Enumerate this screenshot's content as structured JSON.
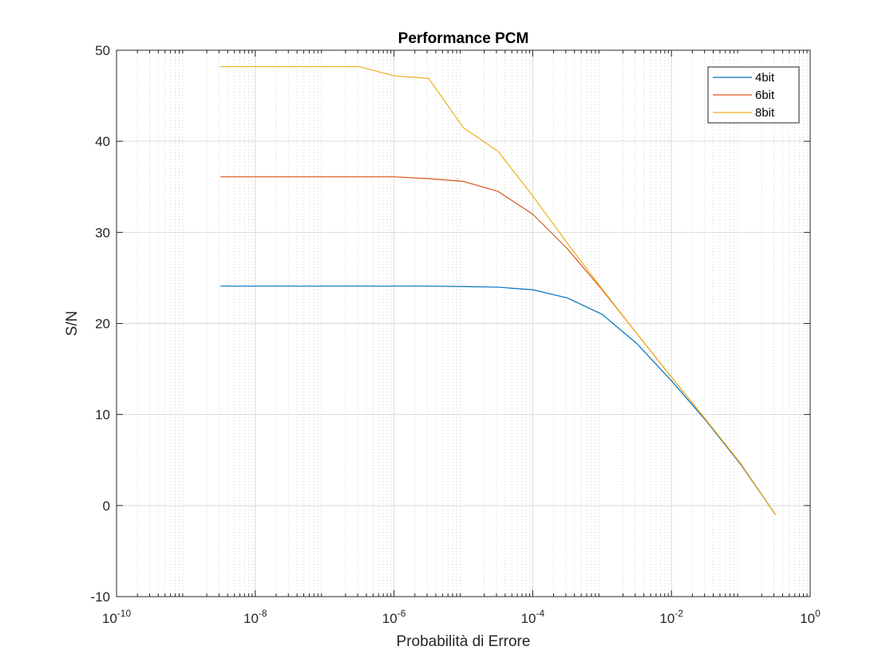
{
  "chart_data": {
    "type": "line",
    "title": "Performance PCM",
    "xlabel": "Probabilità di Errore",
    "ylabel": "S/N",
    "xscale": "log",
    "xlim": [
      1e-10,
      1
    ],
    "ylim": [
      -10,
      50
    ],
    "grid": true,
    "minor_grid": true,
    "legend_position": "top-right",
    "xticks": [
      {
        "value": 1e-10,
        "base": "10",
        "exp": "-10"
      },
      {
        "value": 1e-08,
        "base": "10",
        "exp": "-8"
      },
      {
        "value": 1e-06,
        "base": "10",
        "exp": "-6"
      },
      {
        "value": 0.0001,
        "base": "10",
        "exp": "-4"
      },
      {
        "value": 0.01,
        "base": "10",
        "exp": "-2"
      },
      {
        "value": 1,
        "base": "10",
        "exp": "0"
      }
    ],
    "yticks": [
      "-10",
      "0",
      "10",
      "20",
      "30",
      "40",
      "50"
    ],
    "x": [
      3.16e-09,
      1e-08,
      3.16e-08,
      1e-07,
      3.16e-07,
      1e-06,
      3.16e-06,
      1e-05,
      3.16e-05,
      0.0001,
      0.000316,
      0.001,
      0.00316,
      0.01,
      0.0316,
      0.1,
      0.316
    ],
    "series": [
      {
        "name": "4bit",
        "color": "#0072BD",
        "values": [
          24.1,
          24.1,
          24.1,
          24.1,
          24.1,
          24.1,
          24.1,
          24.05,
          23.98,
          23.7,
          22.8,
          21.0,
          17.8,
          13.7,
          9.3,
          4.5,
          -1.0
        ]
      },
      {
        "name": "6bit",
        "color": "#D95319",
        "values": [
          36.1,
          36.1,
          36.1,
          36.1,
          36.1,
          36.1,
          35.9,
          35.6,
          34.5,
          32.0,
          28.2,
          23.7,
          18.9,
          14.1,
          9.4,
          4.6,
          -1.0
        ]
      },
      {
        "name": "8bit",
        "color": "#EDB120",
        "values": [
          48.2,
          48.2,
          48.2,
          48.2,
          48.2,
          47.2,
          46.9,
          41.5,
          38.9,
          34.0,
          28.8,
          23.8,
          18.9,
          14.1,
          9.4,
          4.6,
          -1.0
        ]
      }
    ]
  }
}
